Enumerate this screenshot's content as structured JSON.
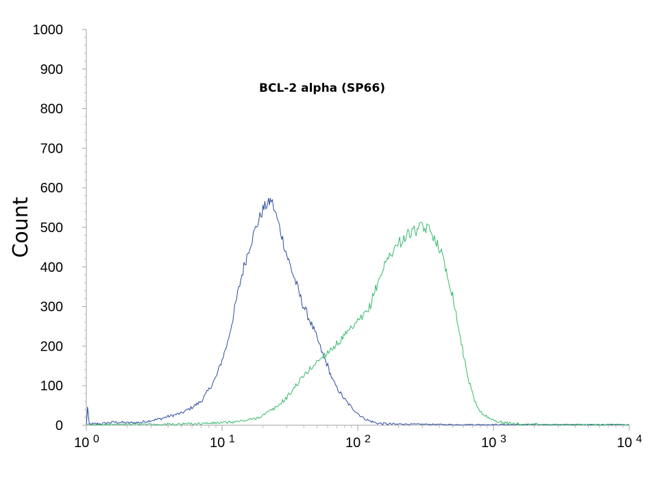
{
  "chart_data": {
    "type": "line",
    "title": "BCL-2 alpha (SP66)",
    "xlabel": "",
    "ylabel": "Count",
    "x_scale": "log",
    "xlim": [
      1,
      10000
    ],
    "ylim": [
      0,
      1000
    ],
    "y_ticks": [
      "0",
      "100",
      "200",
      "300",
      "400",
      "500",
      "600",
      "700",
      "800",
      "900",
      "1000"
    ],
    "x_ticks": [
      {
        "base": "10",
        "exp": "0"
      },
      {
        "base": "10",
        "exp": "1"
      },
      {
        "base": "10",
        "exp": "2"
      },
      {
        "base": "10",
        "exp": "3"
      },
      {
        "base": "10",
        "exp": "4"
      }
    ],
    "grid": false,
    "series": [
      {
        "color": "#2a4a9c",
        "x": [
          1,
          1.02,
          1.05,
          1.3,
          1.6,
          2,
          2.5,
          3,
          3.5,
          4,
          5,
          6,
          7,
          8,
          9,
          10,
          11,
          12,
          13,
          14,
          15,
          16,
          17,
          18,
          19,
          20,
          21,
          22,
          23,
          24,
          25,
          26,
          27,
          28,
          30,
          32,
          35,
          38,
          40,
          45,
          50,
          55,
          60,
          65,
          70,
          80,
          90,
          100,
          110,
          120,
          130,
          140,
          150,
          170,
          200,
          250,
          300,
          500,
          1000,
          10000
        ],
        "y": [
          0,
          45,
          3,
          4,
          8,
          6,
          7,
          12,
          16,
          22,
          30,
          45,
          60,
          90,
          120,
          165,
          210,
          270,
          330,
          380,
          420,
          455,
          480,
          505,
          525,
          545,
          555,
          560,
          570,
          550,
          530,
          510,
          490,
          470,
          430,
          400,
          360,
          320,
          300,
          260,
          220,
          180,
          150,
          115,
          95,
          65,
          45,
          30,
          18,
          12,
          8,
          5,
          4,
          3,
          2,
          1,
          1,
          0,
          0,
          0
        ]
      },
      {
        "color": "#35b86a",
        "x": [
          1,
          2,
          3,
          5,
          8,
          10,
          12,
          15,
          18,
          20,
          25,
          30,
          35,
          40,
          50,
          60,
          70,
          80,
          100,
          120,
          140,
          160,
          180,
          200,
          230,
          260,
          300,
          330,
          360,
          400,
          450,
          500,
          550,
          600,
          650,
          700,
          750,
          800,
          900,
          1000,
          1200,
          1500,
          2000,
          3000,
          10000
        ],
        "y": [
          0,
          1,
          2,
          3,
          5,
          6,
          8,
          12,
          18,
          25,
          45,
          70,
          100,
          125,
          160,
          185,
          205,
          225,
          260,
          290,
          360,
          410,
          440,
          460,
          480,
          490,
          500,
          495,
          480,
          450,
          390,
          330,
          250,
          180,
          120,
          80,
          50,
          35,
          20,
          12,
          6,
          3,
          1,
          0,
          0
        ]
      }
    ]
  }
}
